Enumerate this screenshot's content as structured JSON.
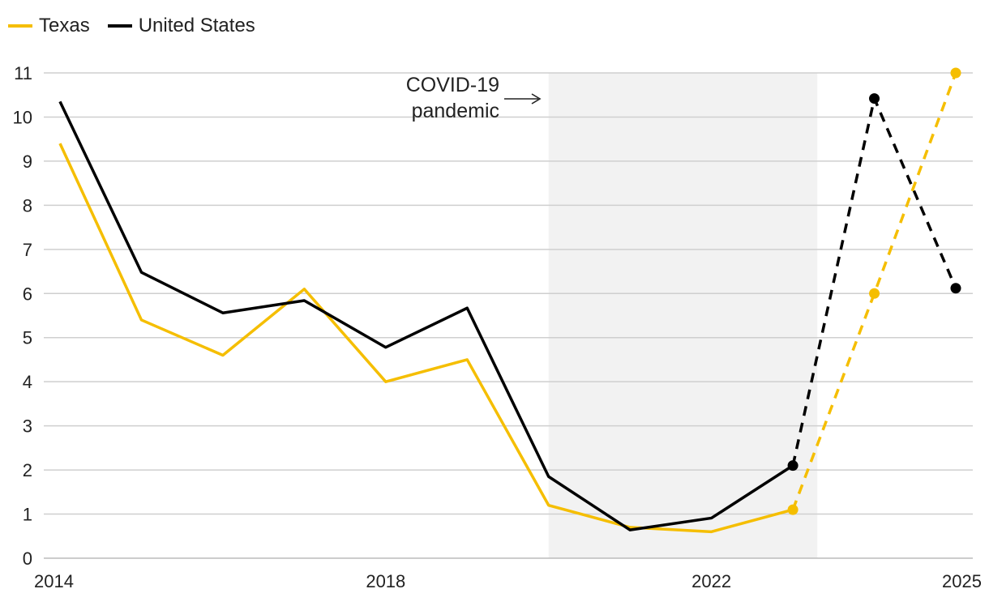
{
  "chart_data": {
    "type": "line",
    "x": [
      2014,
      2015,
      2016,
      2017,
      2018,
      2019,
      2020,
      2021,
      2022,
      2023,
      2024,
      2025
    ],
    "x_tick_labels": [
      "2014",
      "2018",
      "2022",
      "2025"
    ],
    "x_ticks": [
      2014,
      2018,
      2022,
      2025
    ],
    "ylim": [
      0,
      11
    ],
    "y_ticks": [
      "0",
      "1",
      "2",
      "3",
      "4",
      "5",
      "6",
      "7",
      "8",
      "9",
      "10",
      "11"
    ],
    "grid": true,
    "legend_position": "top-left",
    "series": [
      {
        "name": "Texas",
        "color": "#F5BE00",
        "values": [
          9.4,
          5.4,
          4.6,
          6.1,
          4.0,
          4.5,
          1.2,
          0.7,
          0.6,
          1.1,
          6.0,
          11.0
        ],
        "solid_until": 2023,
        "markers": [
          2023,
          2024,
          2025
        ]
      },
      {
        "name": "United States",
        "color": "#000000",
        "values": [
          10.35,
          6.48,
          5.56,
          5.84,
          4.78,
          5.67,
          1.85,
          0.64,
          0.91,
          2.1,
          10.42,
          6.12
        ],
        "solid_until": 2023,
        "markers": [
          2023,
          2024,
          2025
        ]
      }
    ],
    "shaded_region": {
      "x_start": 2020,
      "x_end": 2023.3,
      "color": "#F2F2F2"
    },
    "annotation": {
      "line1": "COVID-19",
      "line2": "pandemic"
    }
  }
}
